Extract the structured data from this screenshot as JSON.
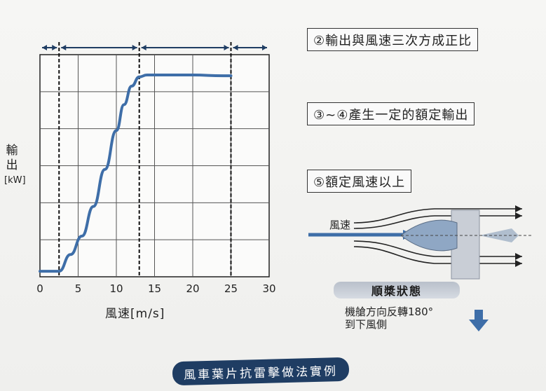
{
  "chart_data": {
    "type": "line",
    "title": "",
    "xlabel": "風速[m/s]",
    "ylabel_lines": [
      "輸",
      "出",
      "[kW]"
    ],
    "x_ticks": [
      "0",
      "5",
      "10",
      "15",
      "20",
      "25",
      "30"
    ],
    "xlim": [
      0,
      30
    ],
    "ylim": [
      0,
      6
    ],
    "grid": true,
    "region_boundaries_x": [
      2.5,
      13,
      25
    ],
    "series": [
      {
        "x": [
          0,
          2.5,
          4,
          5.5,
          7,
          8.5,
          10,
          11,
          12,
          13,
          14,
          16,
          20,
          24,
          25
        ],
        "y": [
          0.15,
          0.15,
          0.6,
          1.1,
          1.9,
          2.9,
          3.95,
          4.65,
          5.15,
          5.4,
          5.45,
          5.45,
          5.45,
          5.43,
          5.43
        ],
        "color": "#3e6ea8"
      }
    ]
  },
  "annotations": {
    "note2": "②輸出與風速三次方成正比",
    "note34": "③~④產生一定的額定輸出",
    "note5": "⑤額定風速以上"
  },
  "wind_diagram": {
    "wind_label": "風速",
    "state_label": "順槳狀態",
    "rotate_note_line1": "機艙方向反轉180°",
    "rotate_note_line2": "到下風側",
    "arrow_color": "#3e6ea8"
  },
  "caption": "風車葉片抗雷擊做法實例",
  "colors": {
    "curve": "#3e6ea8",
    "caption_bg": "#1f3d63",
    "state_bg": "#c6ccd5"
  }
}
